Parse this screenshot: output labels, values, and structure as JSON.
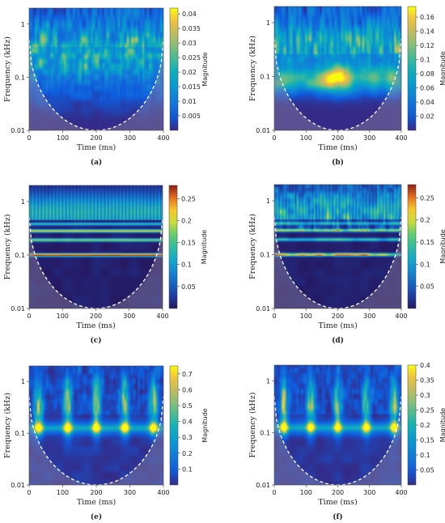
{
  "chart_data": [
    {
      "type": "heatmap",
      "panel": "a",
      "caption": "(a)",
      "xlabel": "Time (ms)",
      "ylabel": "Frequency (kHz)",
      "colorbar_label": "Magnitude",
      "x_ticks": [
        "0",
        "100",
        "200",
        "300",
        "400"
      ],
      "y_ticks": [
        "1",
        "0.1",
        "0.01"
      ],
      "xlim": [
        0,
        400
      ],
      "ylim": [
        0.01,
        2
      ],
      "y_scale": "log",
      "colorbar_max": 0.042,
      "colorbar_ticks": [
        "0.04",
        "0.035",
        "0.03",
        "0.025",
        "0.02",
        "0.015",
        "0.01",
        "0.005"
      ],
      "cone_of_influence": true,
      "pattern": "irregular"
    },
    {
      "type": "heatmap",
      "panel": "b",
      "caption": "(b)",
      "xlabel": "Time (ms)",
      "ylabel": "Frequency (kHz)",
      "colorbar_label": "Magnitude",
      "x_ticks": [
        "0",
        "100",
        "200",
        "300",
        "400"
      ],
      "y_ticks": [
        "1",
        "0.1",
        "0.01"
      ],
      "xlim": [
        0,
        400
      ],
      "ylim": [
        0.01,
        2
      ],
      "y_scale": "log",
      "colorbar_max": 0.175,
      "colorbar_ticks": [
        "0.16",
        "0.14",
        "0.12",
        "0.1",
        "0.08",
        "0.06",
        "0.04",
        "0.02"
      ],
      "cone_of_influence": true,
      "pattern": "low-band"
    },
    {
      "type": "heatmap",
      "panel": "c",
      "caption": "(c)",
      "xlabel": "Time (ms)",
      "ylabel": "Frequency (kHz)",
      "colorbar_label": "Magnitude",
      "x_ticks": [
        "0",
        "100",
        "200",
        "300",
        "400"
      ],
      "y_ticks": [
        "1",
        "0.1",
        "0.01"
      ],
      "xlim": [
        0,
        400
      ],
      "ylim": [
        0.01,
        2
      ],
      "y_scale": "log",
      "colorbar_max": 0.28,
      "colorbar_ticks": [
        "0.25",
        "0.2",
        "0.15",
        "0.1",
        "0.05"
      ],
      "cone_of_influence": true,
      "pattern": "harmonic"
    },
    {
      "type": "heatmap",
      "panel": "d",
      "caption": "(d)",
      "xlabel": "Time (ms)",
      "ylabel": "Frequency (kHz)",
      "colorbar_label": "Magnitude",
      "x_ticks": [
        "0",
        "100",
        "200",
        "300",
        "400"
      ],
      "y_ticks": [
        "1",
        "0.1",
        "0.01"
      ],
      "xlim": [
        0,
        400
      ],
      "ylim": [
        0.01,
        2
      ],
      "y_scale": "log",
      "colorbar_max": 0.28,
      "colorbar_ticks": [
        "0.25",
        "0.2",
        "0.15",
        "0.1",
        "0.05"
      ],
      "cone_of_influence": true,
      "pattern": "harmonic-noisy"
    },
    {
      "type": "heatmap",
      "panel": "e",
      "caption": "(e)",
      "xlabel": "Time (ms)",
      "ylabel": "Frequency (kHz)",
      "colorbar_label": "Magnitude",
      "x_ticks": [
        "0",
        "100",
        "200",
        "300",
        "400"
      ],
      "y_ticks": [
        "1",
        "0.1",
        "0.01"
      ],
      "xlim": [
        0,
        400
      ],
      "ylim": [
        0.01,
        2
      ],
      "y_scale": "log",
      "colorbar_max": 0.75,
      "colorbar_ticks": [
        "0.7",
        "0.6",
        "0.5",
        "0.4",
        "0.3",
        "0.2",
        "0.1"
      ],
      "cone_of_influence": true,
      "pattern": "pulsed",
      "pulse_times_ms": [
        28,
        115,
        200,
        285,
        370
      ]
    },
    {
      "type": "heatmap",
      "panel": "f",
      "caption": "(f)",
      "xlabel": "Time (ms)",
      "ylabel": "Frequency (kHz)",
      "colorbar_label": "Magnitude",
      "x_ticks": [
        "0",
        "100",
        "200",
        "300",
        "400"
      ],
      "y_ticks": [
        "1",
        "0.1",
        "0.01"
      ],
      "xlim": [
        0,
        400
      ],
      "ylim": [
        0.01,
        2
      ],
      "y_scale": "log",
      "colorbar_max": 0.4,
      "colorbar_ticks": [
        "0.4",
        "0.35",
        "0.3",
        "0.25",
        "0.2",
        "0.15",
        "0.1",
        "0.05"
      ],
      "cone_of_influence": true,
      "pattern": "pulsed",
      "pulse_times_ms": [
        30,
        115,
        200,
        290,
        378
      ]
    }
  ]
}
